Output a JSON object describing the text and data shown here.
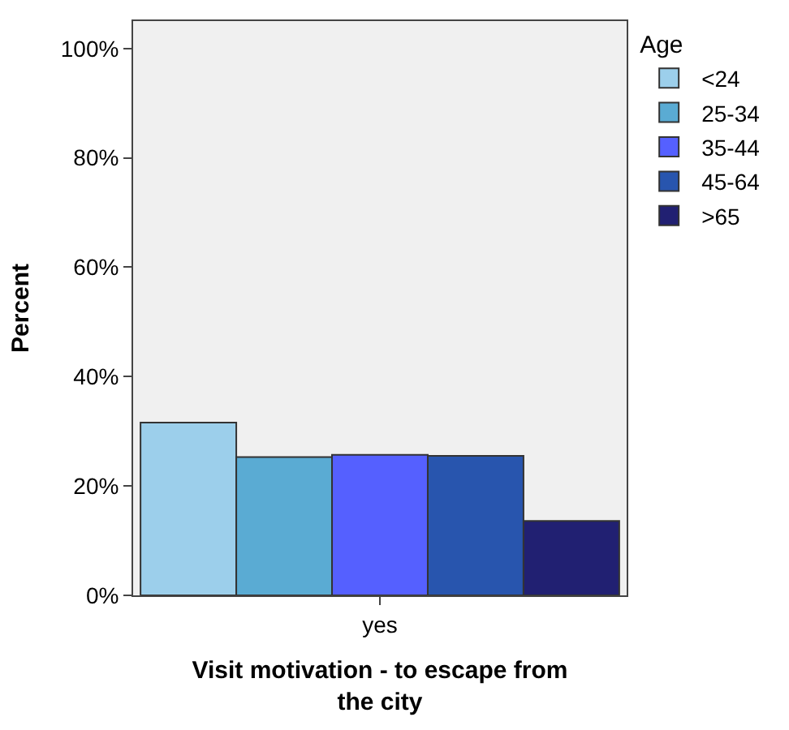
{
  "chart_data": {
    "type": "bar",
    "xlabel": "Visit motivation - to escape from the city",
    "ylabel": "Percent",
    "legend_title": "Age",
    "legend": "top right",
    "categories": [
      "yes"
    ],
    "series": [
      {
        "name": "<24",
        "color": "#9ccfeb",
        "values": [
          31.6
        ]
      },
      {
        "name": "25-34",
        "color": "#5aabd3",
        "values": [
          25.3
        ]
      },
      {
        "name": "35-44",
        "color": "#5560ff",
        "values": [
          25.7
        ]
      },
      {
        "name": "45-64",
        "color": "#2855ae",
        "values": [
          25.5
        ]
      },
      {
        "name": ">65",
        "color": "#212072",
        "values": [
          13.6
        ]
      }
    ],
    "ylim": [
      0,
      105
    ],
    "yticks": [
      {
        "value": 0,
        "label": "0%"
      },
      {
        "value": 20,
        "label": "20%"
      },
      {
        "value": 40,
        "label": "40%"
      },
      {
        "value": 60,
        "label": "60%"
      },
      {
        "value": 80,
        "label": "80%"
      },
      {
        "value": 100,
        "label": "100%"
      }
    ],
    "grid": false
  }
}
